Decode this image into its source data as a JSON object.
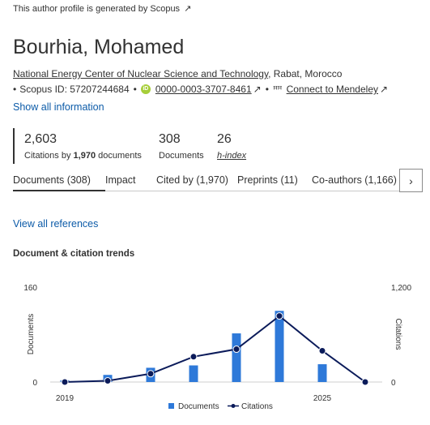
{
  "notice": {
    "text": "This author profile is generated by Scopus",
    "ext_icon": "↗"
  },
  "author": {
    "name": "Bourhia, Mohamed"
  },
  "affiliation": {
    "institution": "National Energy Center of Nuclear Science and Technology",
    "location": ", Rabat, Morocco"
  },
  "identifiers": {
    "bullet": "•",
    "scopus_id": "Scopus ID: 57207244684",
    "orcid_badge": "iD",
    "orcid": "0000-0003-3707-8461",
    "ext_icon": "↗",
    "mendeley_icon": "ꟸꟸ",
    "mendeley": "Connect to Mendeley"
  },
  "show_all": "Show all information",
  "metrics": {
    "citations": {
      "value": "2,603",
      "label_prefix": "Citations by ",
      "docs": "1,970",
      "label_suffix": " documents"
    },
    "documents": {
      "value": "308",
      "label": "Documents"
    },
    "hindex": {
      "value": "26",
      "label": "h-index"
    }
  },
  "tabs": [
    {
      "label": "Documents (308)"
    },
    {
      "label": "Impact"
    },
    {
      "label": "Cited by (1,970)"
    },
    {
      "label": "Preprints (11)"
    },
    {
      "label": "Co-authors (1,166)"
    }
  ],
  "tab_next_icon": "›",
  "view_all_refs": "View all references",
  "trends_title": "Document & citation trends",
  "colors": {
    "bars": "#2e79d9",
    "line": "#0b1b5a",
    "link": "#0c5ba8"
  },
  "chart_data": {
    "type": "bar+line",
    "categories": [
      "2019",
      "2020",
      "2021",
      "2022",
      "2023",
      "2024",
      "2025",
      "2026"
    ],
    "x_tick_labels": {
      "first": "2019",
      "last": "2025"
    },
    "series": [
      {
        "name": "Documents",
        "type": "bar",
        "axis": "left",
        "values": [
          3,
          12,
          24,
          28,
          82,
          120,
          30,
          0
        ]
      },
      {
        "name": "Citations",
        "type": "line",
        "axis": "right",
        "values": [
          0,
          15,
          105,
          320,
          415,
          835,
          395,
          0
        ]
      }
    ],
    "ylabel_left": "Documents",
    "ylabel_right": "Citations",
    "ylim_left": [
      0,
      160
    ],
    "ylim_right": [
      0,
      1200
    ],
    "left_ticks": [
      "0",
      "160"
    ],
    "right_ticks": [
      "0",
      "1,200"
    ],
    "legend": {
      "placement": "bottom",
      "documents": "Documents",
      "citations": "Citations"
    }
  }
}
